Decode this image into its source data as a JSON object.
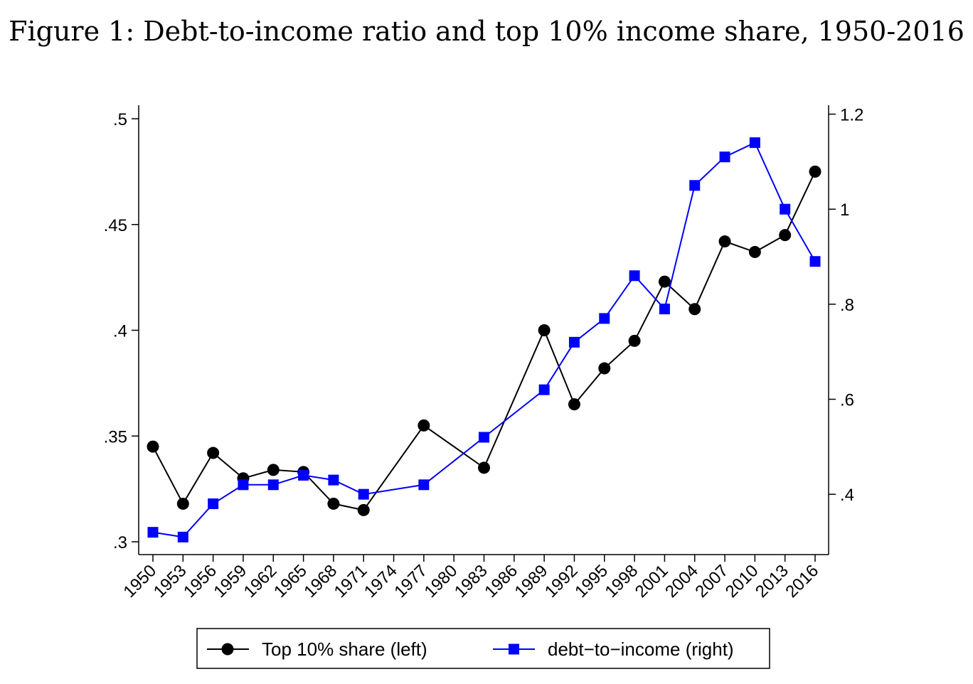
{
  "title": "Figure 1: Debt-to-income ratio and top 10% income share, 1950-2016",
  "chart_data": {
    "type": "line",
    "title": "Figure 1: Debt-to-income ratio and top 10% income share, 1950-2016",
    "xlabel": "",
    "ylabel": "",
    "x_ticks": [
      "1950",
      "1953",
      "1956",
      "1959",
      "1962",
      "1965",
      "1968",
      "1971",
      "1974",
      "1977",
      "1980",
      "1983",
      "1986",
      "1989",
      "1992",
      "1995",
      "1998",
      "2001",
      "2004",
      "2007",
      "2010",
      "2013",
      "2016"
    ],
    "xlim": [
      1950,
      2016
    ],
    "y_left": {
      "lim": [
        0.3,
        0.5
      ],
      "ticks": [
        0.3,
        0.35,
        0.4,
        0.45,
        0.5
      ],
      "tick_labels": [
        ".3",
        ".35",
        ".4",
        ".45",
        ".5"
      ]
    },
    "y_right": {
      "lim": [
        0.3,
        1.23
      ],
      "ticks": [
        0.4,
        0.6,
        0.8,
        1.0,
        1.2
      ],
      "tick_labels": [
        ".4",
        ".6",
        ".8",
        "1",
        "1.2"
      ]
    },
    "grid": false,
    "legend_position": "bottom",
    "series": [
      {
        "name": "Top 10% share (left)",
        "axis": "left",
        "color": "#000000",
        "marker": "circle",
        "x": [
          1950,
          1953,
          1956,
          1959,
          1962,
          1965,
          1968,
          1971,
          1977,
          1983,
          1989,
          1992,
          1995,
          1998,
          2001,
          2004,
          2007,
          2010,
          2013,
          2016
        ],
        "y": [
          0.345,
          0.318,
          0.342,
          0.33,
          0.334,
          0.333,
          0.318,
          0.315,
          0.355,
          0.335,
          0.4,
          0.365,
          0.382,
          0.395,
          0.423,
          0.41,
          0.442,
          0.437,
          0.445,
          0.475
        ]
      },
      {
        "name": "debt−to−income (right)",
        "axis": "right",
        "color": "#0000ff",
        "marker": "square",
        "x": [
          1950,
          1953,
          1956,
          1959,
          1962,
          1965,
          1968,
          1971,
          1977,
          1983,
          1989,
          1992,
          1995,
          1998,
          2001,
          2004,
          2007,
          2010,
          2013,
          2016
        ],
        "y": [
          0.32,
          0.31,
          0.38,
          0.42,
          0.42,
          0.44,
          0.43,
          0.4,
          0.42,
          0.52,
          0.62,
          0.72,
          0.77,
          0.86,
          0.79,
          1.05,
          1.11,
          1.14,
          1.0,
          0.89
        ]
      }
    ]
  }
}
